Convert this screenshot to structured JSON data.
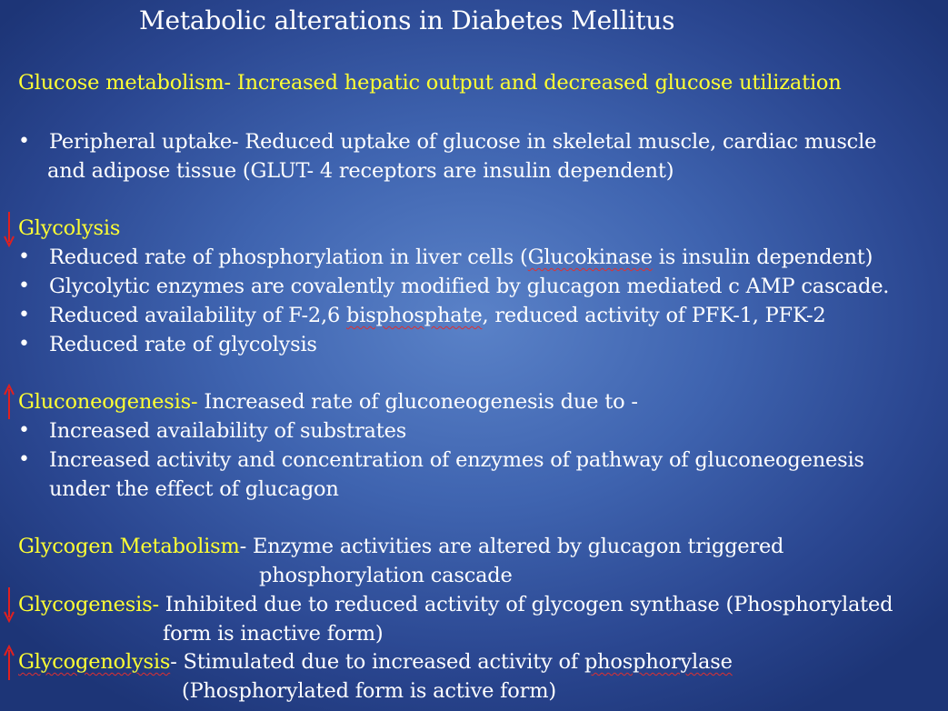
{
  "slide": {
    "title": "Metabolic alterations in Diabetes Mellitus",
    "glucose": {
      "heading": "Glucose metabolism- Increased hepatic output and decreased glucose utilization"
    },
    "peripheral": {
      "bullet": "•",
      "line1": "Peripheral uptake- Reduced uptake of glucose in skeletal muscle, cardiac muscle",
      "line2": "and adipose tissue (GLUT- 4 receptors are insulin dependent)"
    },
    "glycolysis": {
      "heading": "Glycolysis",
      "bullets": [
        {
          "pre": "Reduced rate of phosphorylation in liver cells (",
          "spell": "Glucokinase",
          "post": " is insulin dependent)"
        },
        {
          "text": "Glycolytic enzymes are covalently modified by glucagon mediated c AMP cascade."
        },
        {
          "pre": "Reduced  availability of F-2,6 ",
          "spell": "bisphosphate",
          "post": ", reduced activity of PFK-1, PFK-2"
        },
        {
          "text": "Reduced rate of glycolysis"
        }
      ]
    },
    "gluconeogenesis": {
      "heading": "Gluconeogenesis-",
      "text": " Increased rate of gluconeogenesis due to -",
      "bullets": [
        {
          "text": "Increased availability of substrates"
        },
        {
          "text": "Increased activity and concentration of enzymes of pathway of gluconeogenesis"
        }
      ],
      "continuation": "under the effect of glucagon"
    },
    "glycogen": {
      "heading": "Glycogen Metabolism",
      "text": "- Enzyme activities are altered by glucagon  triggered",
      "text2": "phosphorylation cascade"
    },
    "glycogenesis": {
      "heading": "Glycogenesis-",
      "text": " Inhibited due to reduced activity of glycogen synthase (Phosphorylated",
      "text2": "form is inactive form)"
    },
    "glycogenolysis": {
      "heading": "Glycogenolysis",
      "text_pre": "- Stimulated due to increased activity of ",
      "spell": "phosphorylase",
      "text2": "(Phosphorylated form is active form)"
    },
    "colors": {
      "heading": "#ffff33",
      "body": "#ffffff",
      "arrow": "#e02020"
    },
    "icons": {
      "down": "red-down-arrow-icon",
      "up": "red-up-arrow-icon"
    }
  }
}
